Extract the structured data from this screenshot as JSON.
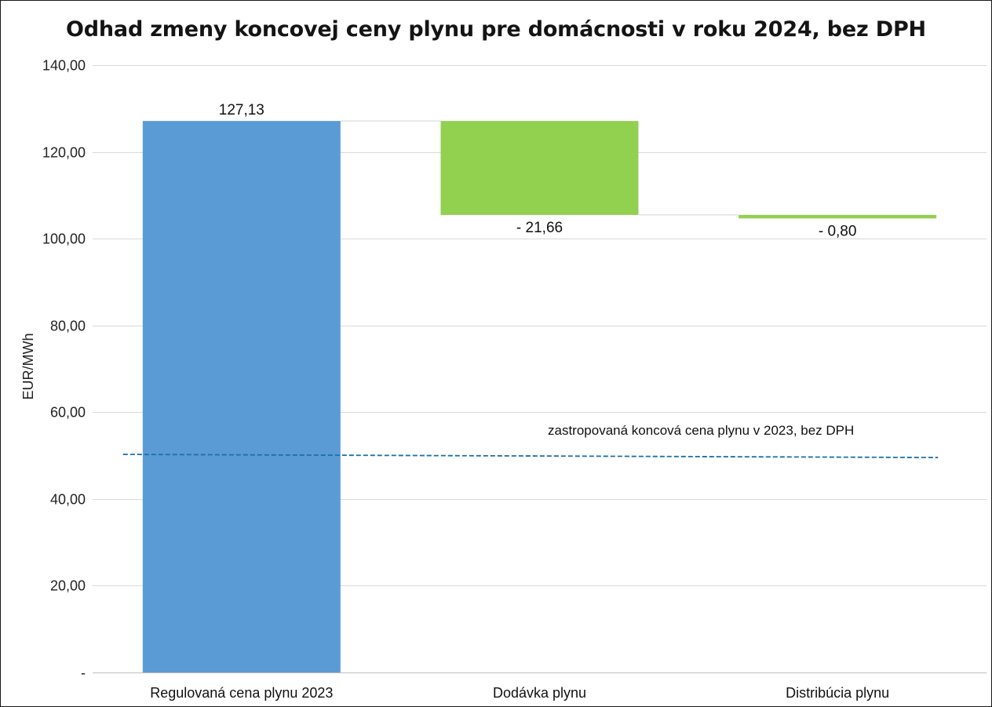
{
  "chart_data": {
    "type": "bar",
    "subtype": "waterfall",
    "title": "Odhad zmeny koncovej ceny plynu pre domácnosti v roku 2024, bez DPH",
    "xlabel": "",
    "ylabel": "EUR/MWh",
    "ylim": [
      0,
      140
    ],
    "yticks": [
      0,
      20,
      40,
      60,
      80,
      100,
      120,
      140
    ],
    "ytick_labels": [
      "-",
      "20,00",
      "40,00",
      "60,00",
      "80,00",
      "100,00",
      "120,00",
      "140,00"
    ],
    "grid": true,
    "legend": "none",
    "categories": [
      "Regulovaná cena plynu 2023",
      "Dodávka plynu",
      "Distribúcia plynu"
    ],
    "values": [
      127.13,
      -21.66,
      -0.8
    ],
    "data_labels": [
      "127,13",
      "- 21,66",
      "- 0,80"
    ],
    "colors": {
      "total": "#5b9bd5",
      "decrease": "#92d050",
      "reference_line": "#1f6fa8",
      "grid": "#d9d9d9"
    },
    "reference_line": {
      "label": "zastropovaná koncová cena plynu v 2023, bez DPH",
      "value": 50
    }
  }
}
